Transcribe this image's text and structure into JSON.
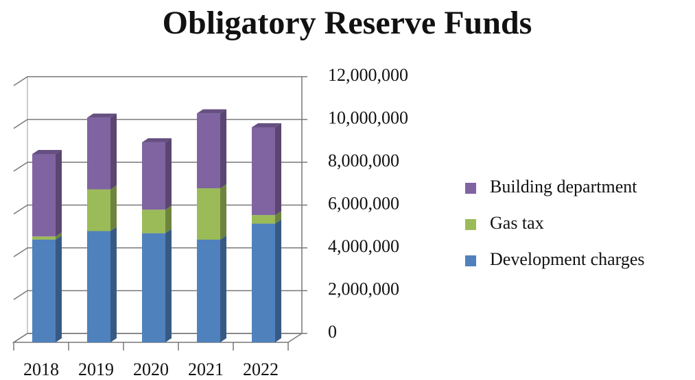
{
  "chart_data": {
    "type": "bar3d_stacked",
    "title": "Obligatory Reserve Funds",
    "categories": [
      "2018",
      "2019",
      "2020",
      "2021",
      "2022"
    ],
    "series": [
      {
        "name": "Development charges",
        "color": "#4f81bd",
        "values": [
          4800000,
          5200000,
          5100000,
          4800000,
          5550000
        ]
      },
      {
        "name": "Gas tax",
        "color": "#9bbb59",
        "values": [
          150000,
          1950000,
          1100000,
          2400000,
          400000
        ]
      },
      {
        "name": "Building department",
        "color": "#8064a2",
        "values": [
          3850000,
          3350000,
          3150000,
          3500000,
          4100000
        ]
      }
    ],
    "ylim": [
      0,
      12000000
    ],
    "yticks": [
      {
        "value": 0,
        "label": "0"
      },
      {
        "value": 2000000,
        "label": "2,000,000"
      },
      {
        "value": 4000000,
        "label": "4,000,000"
      },
      {
        "value": 6000000,
        "label": "6,000,000"
      },
      {
        "value": 8000000,
        "label": "8,000,000"
      },
      {
        "value": 10000000,
        "label": "10,000,000"
      },
      {
        "value": 12000000,
        "label": "12,000,000"
      }
    ],
    "grid": true
  }
}
